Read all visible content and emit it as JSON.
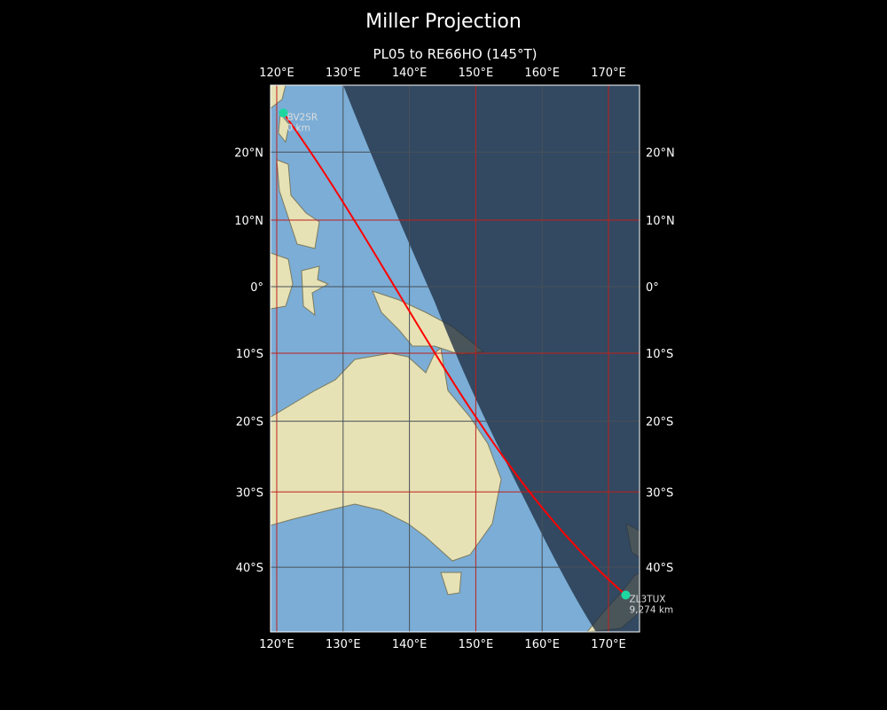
{
  "chart_data": {
    "type": "map",
    "title": "Miller Projection",
    "subtitle": "PL05 to RE66HO (145°T)",
    "projection": "Miller",
    "lon_range": [
      119,
      174.7
    ],
    "lat_range": [
      -48.5,
      29.6
    ],
    "lon_ticks": [
      {
        "value": 120,
        "label": "120°E"
      },
      {
        "value": 130,
        "label": "130°E"
      },
      {
        "value": 140,
        "label": "140°E"
      },
      {
        "value": 150,
        "label": "150°E"
      },
      {
        "value": 160,
        "label": "160°E"
      },
      {
        "value": 170,
        "label": "170°E"
      }
    ],
    "lat_ticks": [
      {
        "value": 20,
        "label": "20°N"
      },
      {
        "value": 10,
        "label": "10°N"
      },
      {
        "value": 0,
        "label": "0°"
      },
      {
        "value": -10,
        "label": "10°S"
      },
      {
        "value": -20,
        "label": "20°S"
      },
      {
        "value": -30,
        "label": "30°S"
      },
      {
        "value": -40,
        "label": "40°S"
      }
    ],
    "grid": true,
    "night_shading": true,
    "path": {
      "color": "#ff0000",
      "type": "great-circle"
    },
    "stations": [
      {
        "name": "BV2SR",
        "distance": "0 km",
        "lon": 121.0,
        "lat": 25.6
      },
      {
        "name": "ZL3TUX",
        "distance": "9,274 km",
        "lon": 172.6,
        "lat": -43.5
      }
    ],
    "colors": {
      "marker": "#1ed6a0",
      "ocean": "#7badd6",
      "land": "#e8e3b8",
      "night": "#1e2d40",
      "grid_major": "#c0201a",
      "grid_minor": "#4a5058"
    }
  }
}
